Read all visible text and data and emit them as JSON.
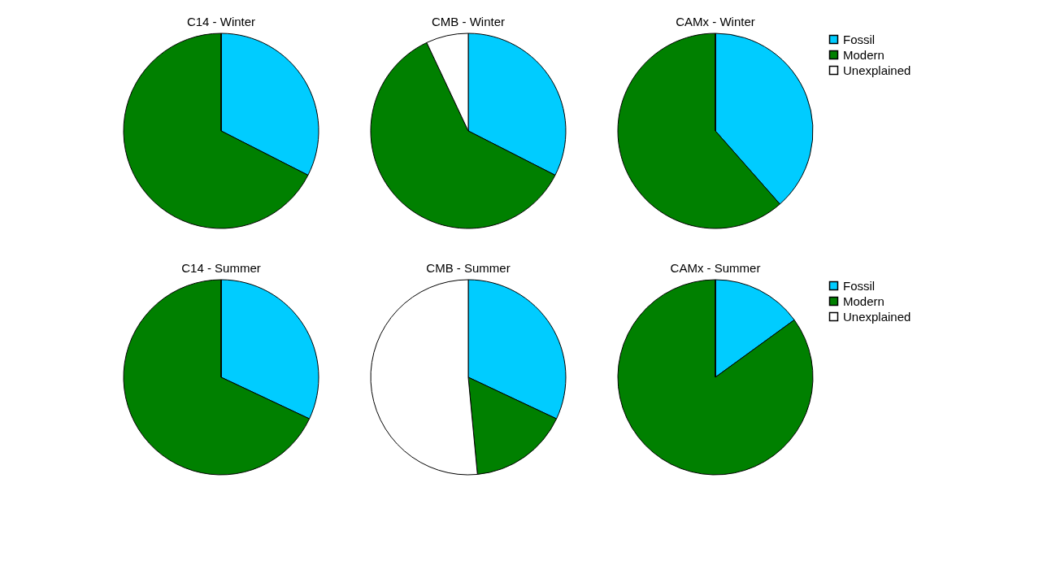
{
  "chart_data": [
    {
      "type": "pie",
      "title": "C14 - Winter",
      "categories": [
        null,
        null,
        null
      ],
      "values": [
        32.5,
        67.5,
        0
      ],
      "colors": [
        "#00ccff",
        "#008000",
        "#ffffff"
      ],
      "legend": false
    },
    {
      "type": "pie",
      "title": "CMB - Winter",
      "categories": [
        null,
        null,
        null
      ],
      "values": [
        32.5,
        60.5,
        7
      ],
      "colors": [
        "#00ccff",
        "#008000",
        "#ffffff"
      ],
      "legend": false
    },
    {
      "type": "pie",
      "title": "CAMx - Winter",
      "categories": [
        "Fossil",
        "Modern",
        "Unexplained"
      ],
      "values": [
        38.5,
        61.5,
        0
      ],
      "colors": [
        "#00ccff",
        "#008000",
        "#ffffff"
      ],
      "legend": "right"
    },
    {
      "type": "pie",
      "title": "C14 - Summer",
      "categories": [
        null,
        null,
        null
      ],
      "values": [
        32,
        68,
        0
      ],
      "colors": [
        "#00ccff",
        "#008000",
        "#ffffff"
      ],
      "legend": false
    },
    {
      "type": "pie",
      "title": "CMB - Summer",
      "categories": [
        null,
        null,
        null
      ],
      "values": [
        32,
        16.5,
        51.5
      ],
      "colors": [
        "#00ccff",
        "#008000",
        "#ffffff"
      ],
      "legend": false
    },
    {
      "type": "pie",
      "title": "CAMx - Summer",
      "categories": [
        "Fossil",
        "Modern",
        "Unexplained"
      ],
      "values": [
        15,
        85,
        0
      ],
      "colors": [
        "#00ccff",
        "#008000",
        "#ffffff"
      ],
      "legend": "right"
    }
  ]
}
